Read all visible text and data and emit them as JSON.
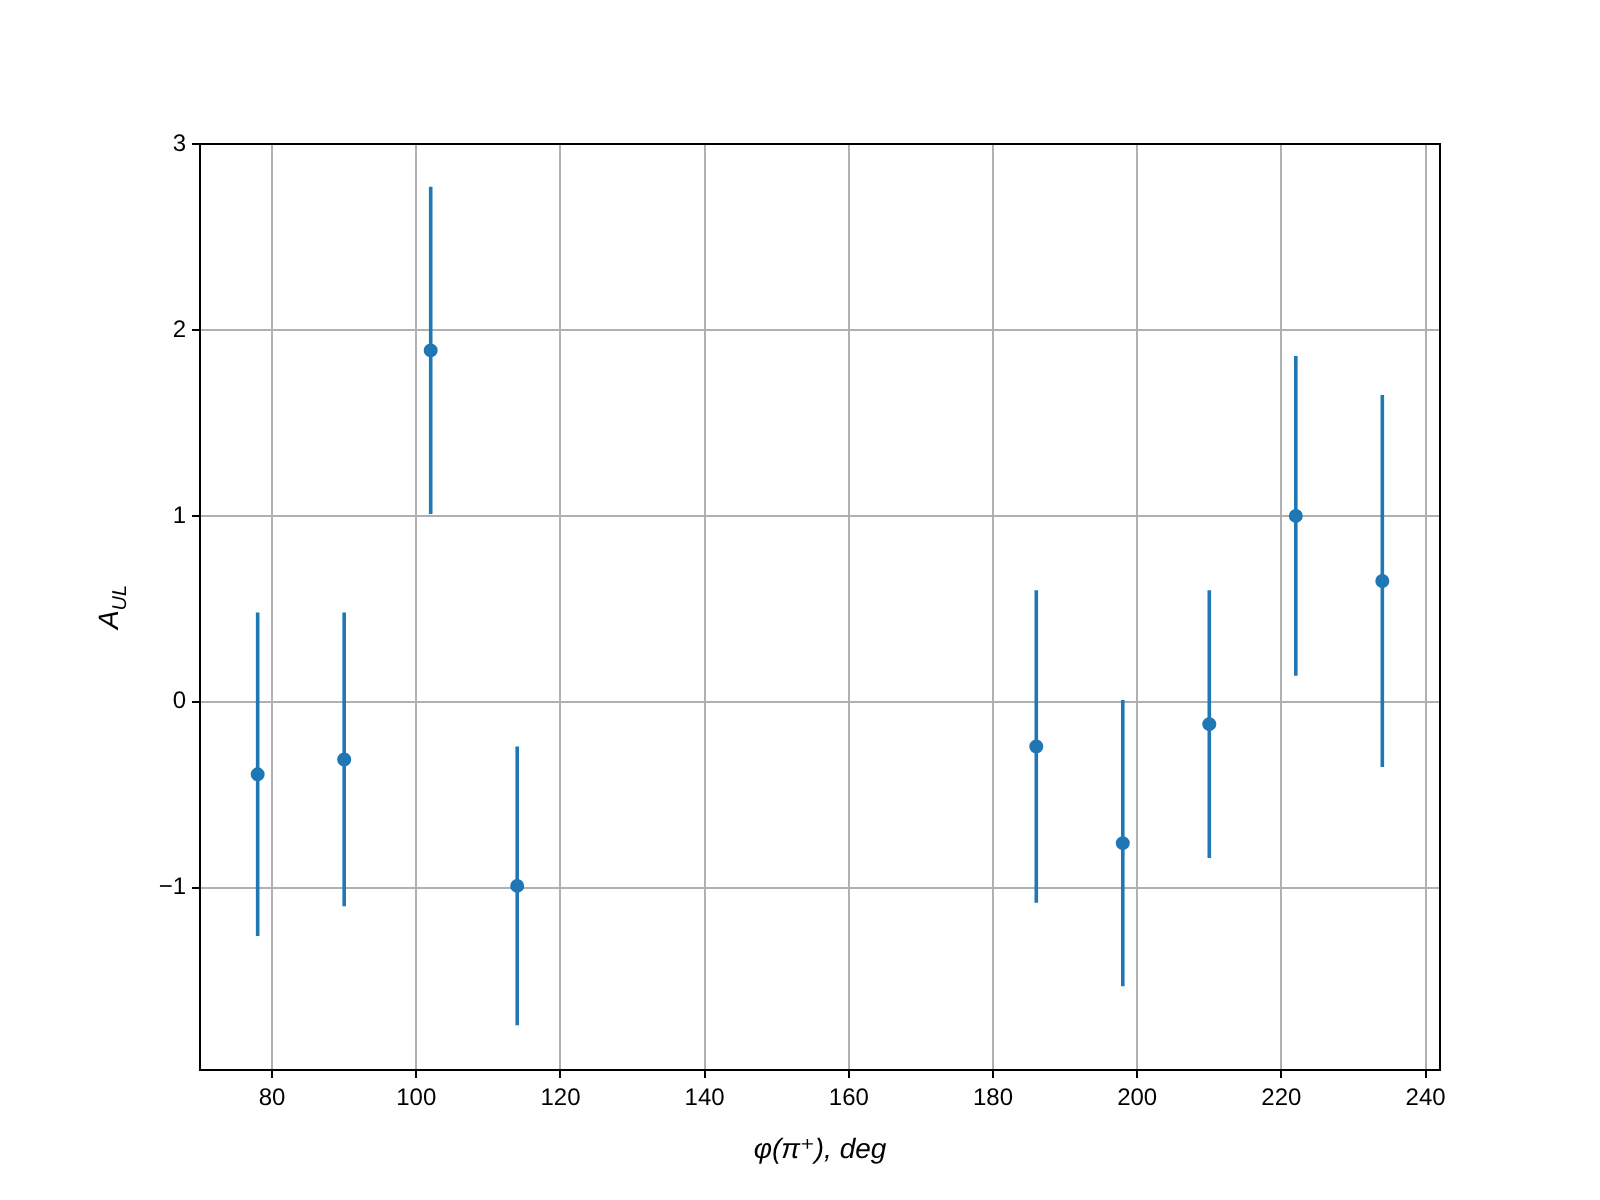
{
  "chart_data": {
    "type": "scatter",
    "xlabel": "φ(π⁺), deg",
    "ylabel": "A$_{UL}$",
    "x": [
      78,
      90,
      102,
      114,
      186,
      198,
      210,
      222,
      234
    ],
    "series": [
      {
        "color": "#1f77b4",
        "values": [
          -0.39,
          -0.31,
          1.89,
          -0.99,
          -0.24,
          -0.76,
          -0.12,
          1.0,
          0.65
        ],
        "errors": [
          0.87,
          0.79,
          0.88,
          0.75,
          0.84,
          0.77,
          0.72,
          0.86,
          1.0
        ]
      }
    ],
    "xlim": [
      70,
      242
    ],
    "xticks": [
      80,
      100,
      120,
      140,
      160,
      180,
      200,
      220,
      240
    ],
    "ylim": [
      -1.98,
      3
    ],
    "yticks": [
      {
        "value": -1,
        "label": "−1"
      },
      0,
      1,
      2,
      3
    ],
    "grid": true,
    "marker": "circle",
    "legend": false
  }
}
